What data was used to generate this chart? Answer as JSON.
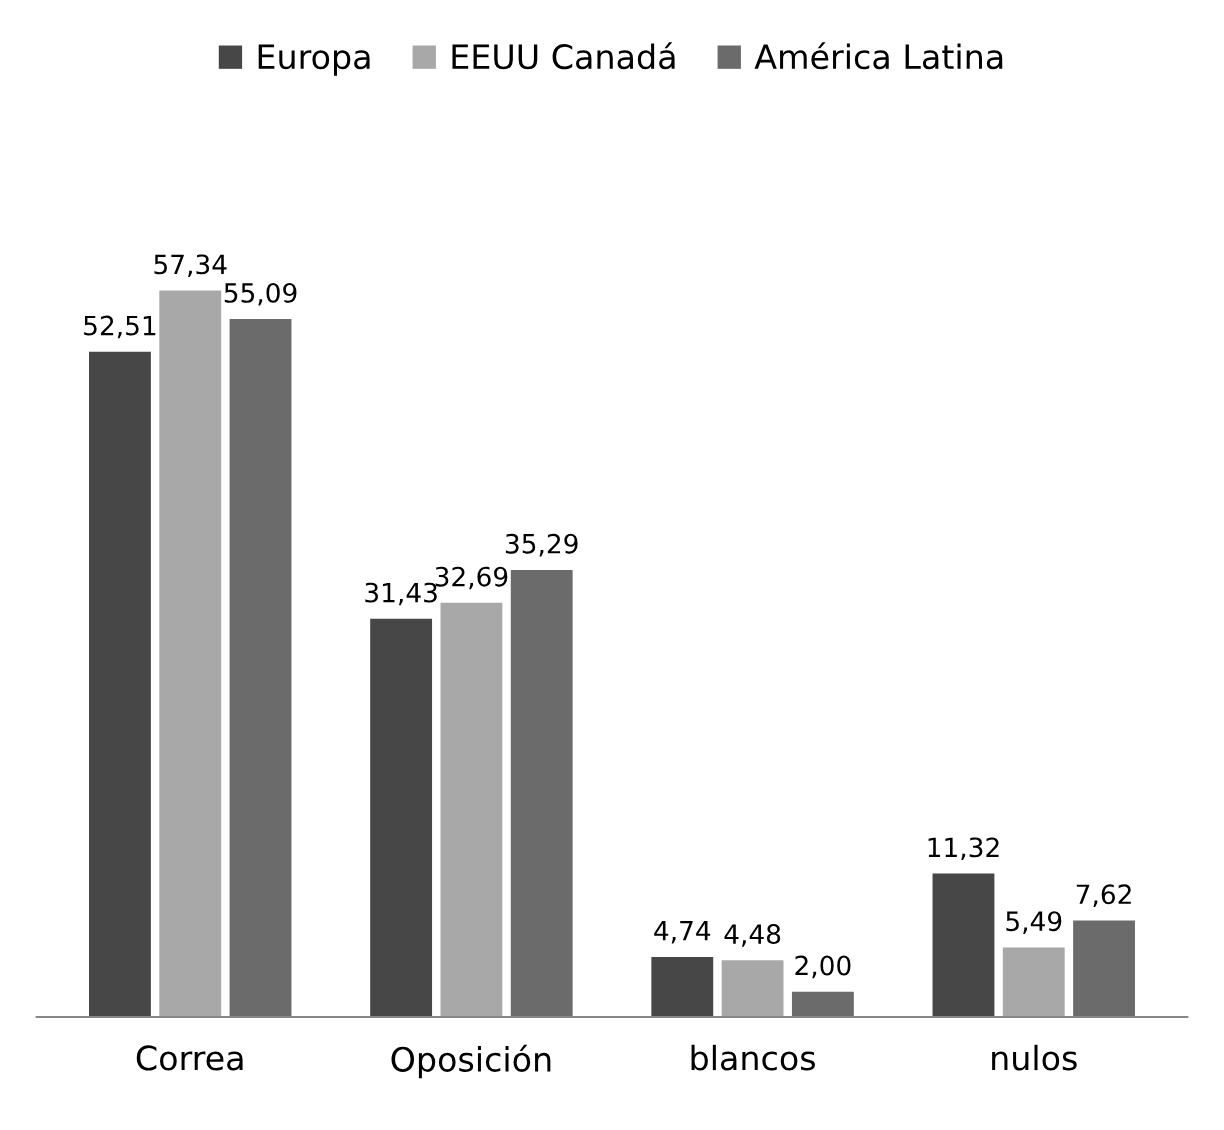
{
  "chart_data": {
    "type": "bar",
    "categories": [
      "Correa",
      "Oposición",
      "blancos",
      "nulos"
    ],
    "series": [
      {
        "name": "Europa",
        "color": "#474747",
        "values": [
          52.51,
          31.43,
          4.74,
          11.32
        ],
        "value_labels": [
          "52,51",
          "31,43",
          "4,74",
          "11,32"
        ]
      },
      {
        "name": "EEUU Canadá",
        "color": "#a8a8a8",
        "values": [
          57.34,
          32.69,
          4.48,
          5.49
        ],
        "value_labels": [
          "57,34",
          "32,69",
          "4,48",
          "5,49"
        ]
      },
      {
        "name": "América Latina",
        "color": "#6b6b6b",
        "values": [
          55.09,
          35.29,
          2.0,
          7.62
        ],
        "value_labels": [
          "55,09",
          "35,29",
          "2,00",
          "7,62"
        ]
      }
    ],
    "legend": "top",
    "grid": false
  }
}
